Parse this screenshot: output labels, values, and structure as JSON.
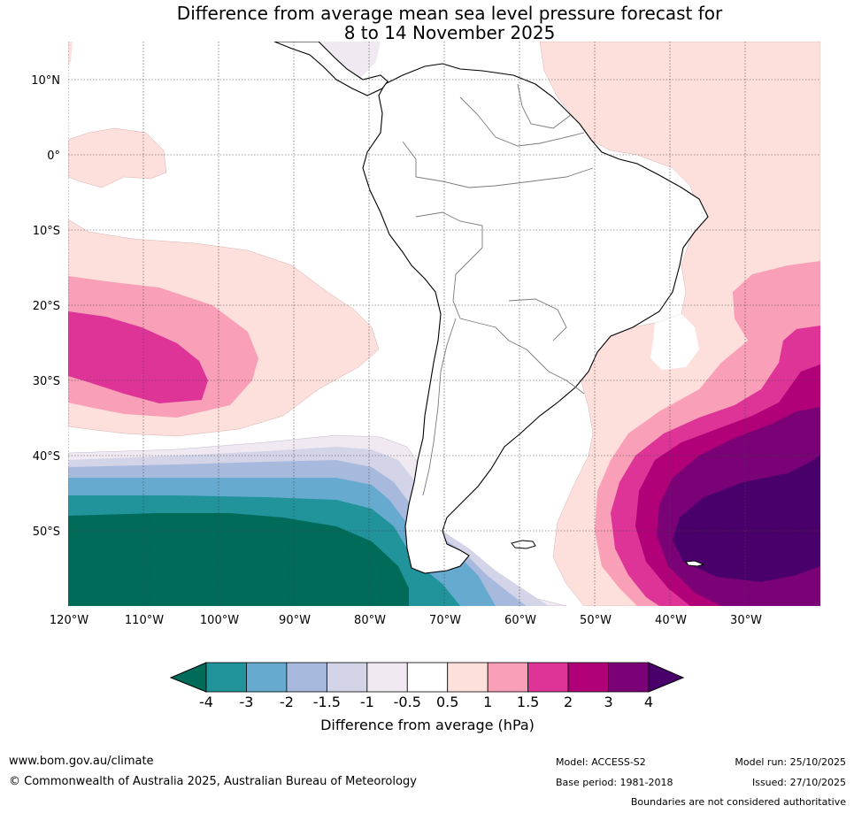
{
  "title": {
    "line1": "Difference from average mean sea level pressure forecast for",
    "line2": "8 to 14 November 2025"
  },
  "map": {
    "lat_labels": [
      "10°N",
      "0°",
      "10°S",
      "20°S",
      "30°S",
      "40°S",
      "50°S"
    ],
    "lon_labels": [
      "120°W",
      "110°W",
      "100°W",
      "90°W",
      "80°W",
      "70°W",
      "60°W",
      "50°W",
      "40°W",
      "30°W"
    ],
    "extent": {
      "lon_min": -120,
      "lon_max": -20,
      "lat_min": -60,
      "lat_max": 15
    }
  },
  "colorbar": {
    "label": "Difference from average (hPa)",
    "ticks": [
      "-4",
      "-3",
      "-2",
      "-1.5",
      "-1",
      "-0.5",
      "0.5",
      "1",
      "1.5",
      "2",
      "3",
      "4"
    ],
    "colors": {
      "under": "#006b59",
      "bins": [
        "#20939b",
        "#66aad0",
        "#a7bade",
        "#d3d4e8",
        "#f0e9f1",
        "#ffffff",
        "#fde0dc",
        "#f99fb8",
        "#de3498",
        "#b10078",
        "#7a0176"
      ],
      "over": "#4a006b"
    }
  },
  "footer": {
    "website": "www.bom.gov.au/climate",
    "copyright": "© Commonwealth of Australia 2025, Australian Bureau of Meteorology",
    "model": "Model: ACCESS-S2",
    "base_period": "Base period: 1981-2018",
    "model_run": "Model run: 25/10/2025",
    "issued": "Issued: 27/10/2025",
    "disclaimer": "Boundaries are not considered authoritative"
  }
}
